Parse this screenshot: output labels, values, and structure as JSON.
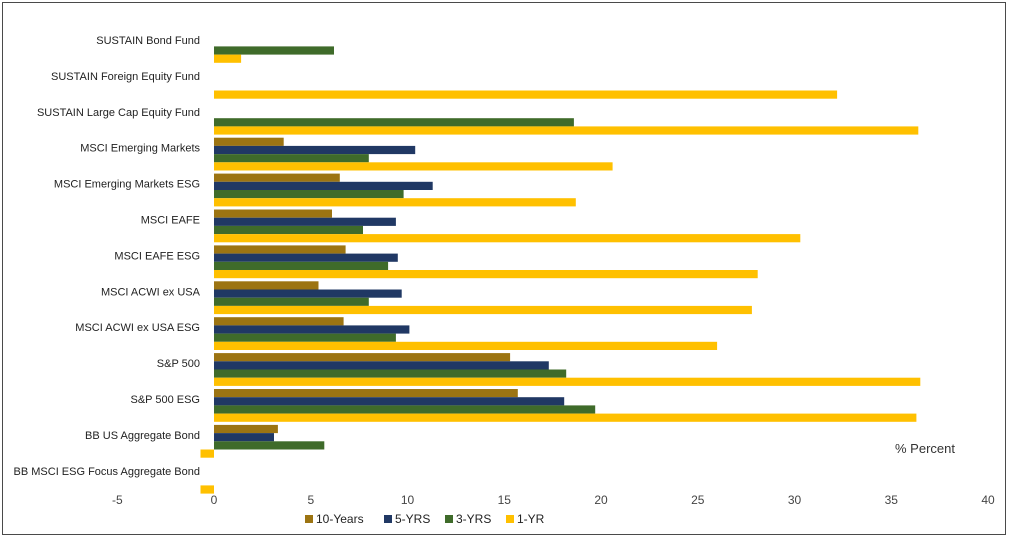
{
  "chart_data": {
    "type": "bar",
    "orientation": "horizontal",
    "categories": [
      "SUSTAIN Bond Fund",
      "SUSTAIN Foreign Equity Fund",
      "SUSTAIN Large Cap Equity Fund",
      "MSCI Emerging Markets",
      "MSCI Emerging Markets ESG",
      "MSCI EAFE",
      "MSCI EAFE ESG",
      "MSCI ACWI ex USA",
      "MSCI ACWI ex USA ESG",
      "S&P 500",
      "S&P 500 ESG",
      "BB  US Aggregate Bond",
      "BB MSCI ESG Focus Aggregate Bond"
    ],
    "series": [
      {
        "name": "10-Years",
        "color": "#9c7412",
        "values": [
          null,
          null,
          null,
          3.6,
          6.5,
          6.1,
          6.8,
          5.4,
          6.7,
          15.3,
          15.7,
          3.3,
          null
        ]
      },
      {
        "name": "5-YRS",
        "color": "#203864",
        "values": [
          null,
          null,
          null,
          10.4,
          11.3,
          9.4,
          9.5,
          9.7,
          10.1,
          17.3,
          18.1,
          3.1,
          null
        ]
      },
      {
        "name": "3-YRS",
        "color": "#3f6b2a",
        "values": [
          6.2,
          null,
          18.6,
          8.0,
          9.8,
          7.7,
          9.0,
          8.0,
          9.4,
          18.2,
          19.7,
          5.7,
          null
        ]
      },
      {
        "name": "1-YR",
        "color": "#ffc000",
        "values": [
          1.4,
          32.2,
          36.4,
          20.6,
          18.7,
          30.3,
          28.1,
          27.8,
          26.0,
          36.5,
          36.3,
          -0.7,
          -0.7
        ]
      }
    ],
    "xlim": [
      -5,
      40
    ],
    "xticks": [
      "-5",
      "0",
      "5",
      "10",
      "15",
      "20",
      "25",
      "30",
      "35",
      "40"
    ],
    "annotation": "% Percent",
    "legend_position": "bottom",
    "grid": false
  }
}
